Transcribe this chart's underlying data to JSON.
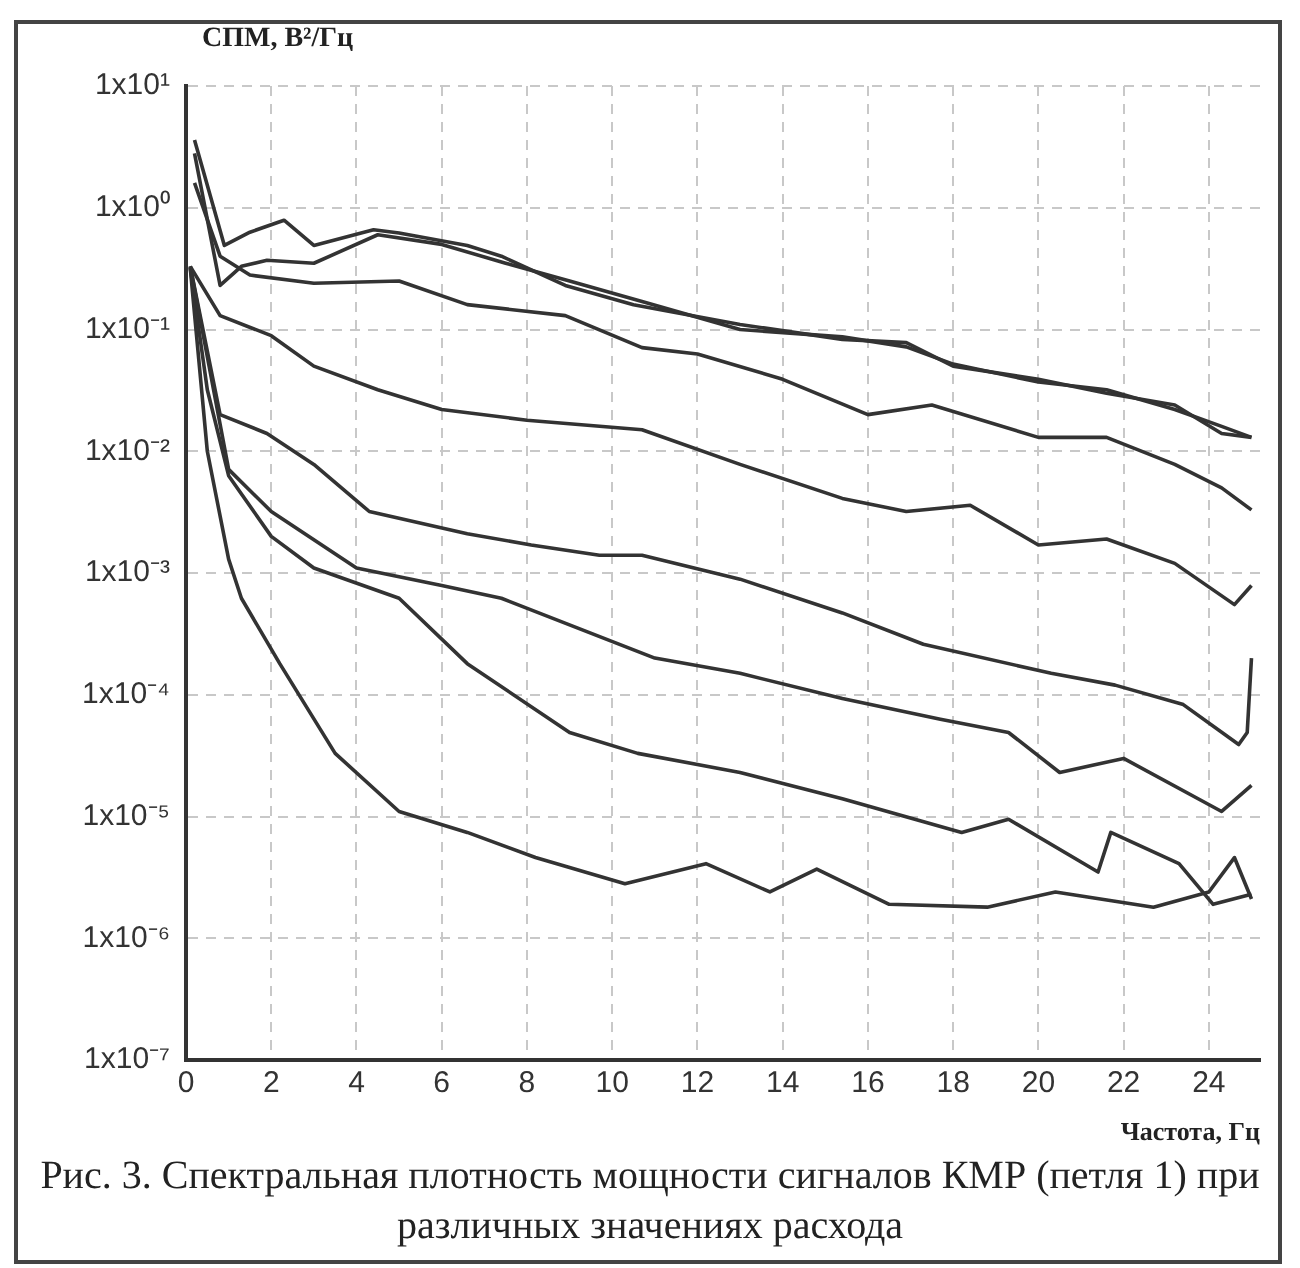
{
  "chart_data": {
    "type": "line",
    "ylabel": "СПМ, В²/Гц",
    "xlabel": "Частота, Гц",
    "annotations": [
      "Рис. 3. Спектральная плотность мощности сигналов КМР (петля 1) при различных значениях расхода"
    ],
    "log": "y",
    "grid": true,
    "legend": false,
    "marker": "none",
    "xlim": [
      0,
      25.2
    ],
    "ylim": [
      1e-07,
      10
    ],
    "xticks": [
      0,
      2,
      4,
      6,
      8,
      10,
      12,
      14,
      16,
      18,
      20,
      22,
      24
    ],
    "yticks": [
      {
        "value": 10,
        "label": "1x10¹"
      },
      {
        "value": 1,
        "label": "1x10⁰"
      },
      {
        "value": 0.1,
        "label": "1x10⁻¹"
      },
      {
        "value": 0.01,
        "label": "1x10⁻²"
      },
      {
        "value": 0.001,
        "label": "1x10⁻³"
      },
      {
        "value": 0.0001,
        "label": "1x10⁻⁴"
      },
      {
        "value": 1e-05,
        "label": "1x10⁻⁵"
      },
      {
        "value": 1e-06,
        "label": "1x10⁻⁶"
      },
      {
        "value": 1e-07,
        "label": "1x10⁻⁷"
      }
    ],
    "series": [
      {
        "color": "#333333",
        "x": [
          0.2,
          0.9,
          1.5,
          2.3,
          3,
          4.4,
          5,
          6.6,
          7.4,
          8.9,
          10.5,
          13,
          15.4,
          16.9,
          18,
          20,
          21.6,
          23.2,
          24.3,
          25
        ],
        "values": [
          3.6,
          0.49,
          0.63,
          0.79,
          0.49,
          0.66,
          0.62,
          0.49,
          0.4,
          0.23,
          0.16,
          0.11,
          0.083,
          0.078,
          0.05,
          0.039,
          0.03,
          0.024,
          0.014,
          0.013
        ]
      },
      {
        "color": "#333333",
        "x": [
          0.2,
          0.8,
          1.3,
          1.9,
          3,
          4.5,
          6,
          7.5,
          9,
          10.7,
          13,
          15.4,
          16.9,
          18,
          20,
          21.6,
          23.2,
          24.3,
          25
        ],
        "values": [
          2.8,
          0.23,
          0.33,
          0.37,
          0.35,
          0.6,
          0.5,
          0.35,
          0.25,
          0.17,
          0.1,
          0.087,
          0.072,
          0.052,
          0.037,
          0.032,
          0.022,
          0.016,
          0.013
        ]
      },
      {
        "color": "#333333",
        "x": [
          0.2,
          0.8,
          1.5,
          3,
          5,
          6.6,
          8.9,
          10.7,
          12,
          14,
          16,
          17.5,
          20,
          21.6,
          23.2,
          24.3,
          25
        ],
        "values": [
          1.6,
          0.4,
          0.28,
          0.24,
          0.25,
          0.16,
          0.13,
          0.071,
          0.063,
          0.039,
          0.02,
          0.024,
          0.013,
          0.013,
          0.0078,
          0.005,
          0.0033
        ]
      },
      {
        "color": "#333333",
        "x": [
          0.1,
          0.8,
          2,
          3,
          4.5,
          6,
          8,
          10.7,
          13,
          15.4,
          16.9,
          18.4,
          20,
          21.6,
          23.2,
          24.6,
          25
        ],
        "values": [
          0.33,
          0.13,
          0.089,
          0.05,
          0.032,
          0.022,
          0.018,
          0.015,
          0.0078,
          0.0041,
          0.0032,
          0.0036,
          0.0017,
          0.0019,
          0.0012,
          0.00055,
          0.00079
        ]
      },
      {
        "color": "#333333",
        "x": [
          0.1,
          0.8,
          1.9,
          3,
          4.3,
          6.6,
          8.1,
          9.7,
          10.7,
          13,
          15.4,
          17.3,
          20.3,
          21.8,
          23.4,
          24.7,
          24.9,
          25
        ],
        "values": [
          0.33,
          0.02,
          0.014,
          0.0078,
          0.0032,
          0.0021,
          0.0017,
          0.0014,
          0.0014,
          0.00089,
          0.00047,
          0.00026,
          0.00015,
          0.00012,
          8.3e-05,
          3.9e-05,
          4.9e-05,
          0.0002
        ]
      },
      {
        "color": "#333333",
        "x": [
          0.1,
          1,
          2,
          4,
          6,
          7.4,
          11,
          13,
          15.4,
          17.7,
          19.3,
          20.5,
          22,
          24.3,
          25
        ],
        "values": [
          0.33,
          0.0071,
          0.0032,
          0.0011,
          0.00079,
          0.00062,
          0.0002,
          0.00015,
          9.3e-05,
          6.3e-05,
          4.9e-05,
          2.3e-05,
          3e-05,
          1.1e-05,
          1.8e-05
        ]
      },
      {
        "color": "#333333",
        "x": [
          0.1,
          0.5,
          1,
          2,
          3,
          5,
          6.6,
          9,
          10.6,
          13,
          15.4,
          18.2,
          19.3,
          21.4,
          21.7,
          23.3,
          24.1,
          25
        ],
        "values": [
          0.32,
          0.032,
          0.0063,
          0.002,
          0.0011,
          0.00062,
          0.00018,
          4.9e-05,
          3.3e-05,
          2.3e-05,
          1.4e-05,
          7.4e-06,
          9.5e-06,
          3.5e-06,
          7.4e-06,
          4.1e-06,
          1.9e-06,
          2.3e-06
        ]
      },
      {
        "color": "#333333",
        "x": [
          0.1,
          0.5,
          1,
          1.3,
          2.2,
          3.5,
          5,
          6.6,
          8.2,
          10.3,
          12.2,
          13.7,
          14.8,
          16.5,
          18.8,
          20.4,
          22.7,
          24,
          24.6,
          25
        ],
        "values": [
          0.32,
          0.01,
          0.0013,
          0.00062,
          0.00018,
          3.3e-05,
          1.1e-05,
          7.4e-06,
          4.6e-06,
          2.8e-06,
          4.1e-06,
          2.4e-06,
          3.7e-06,
          1.9e-06,
          1.8e-06,
          2.4e-06,
          1.8e-06,
          2.4e-06,
          4.6e-06,
          2.1e-06
        ]
      }
    ]
  }
}
